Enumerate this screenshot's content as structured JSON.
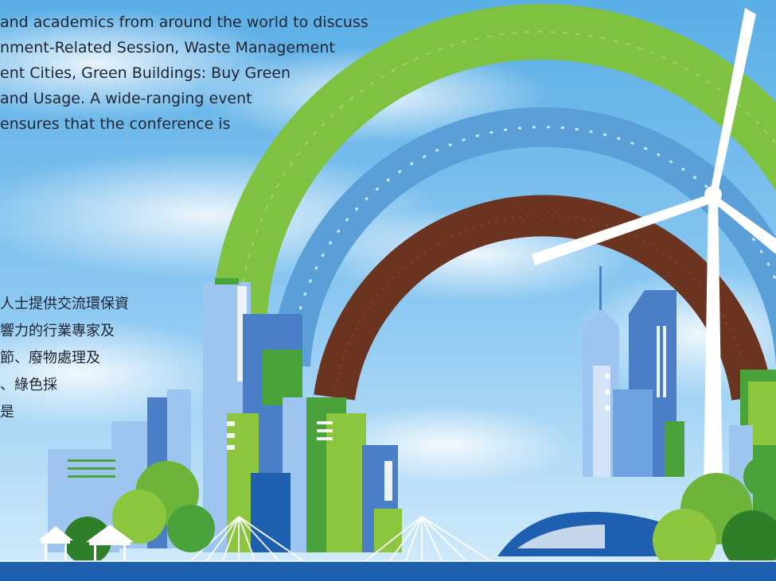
{
  "english_paragraph": {
    "lines": [
      "and academics from around the world to discuss",
      "nment-Related Session, Waste Management",
      "ent Cities, Green Buildings: Buy Green",
      "and Usage. A wide-ranging event",
      "ensures that the conference is"
    ]
  },
  "chinese_paragraph": {
    "lines": [
      "人士提供交流環保資",
      "響力的行業專家及",
      "節、廢物處理及",
      "、綠色採",
      "是"
    ]
  },
  "colors": {
    "sky_top": "#5aaee6",
    "sky_bottom": "#cfe9fb",
    "leaf_green": "#7fc241",
    "water_blue": "#5a9fd8",
    "soil_brown": "#6b3420",
    "building_blue": "#3f7fcf",
    "building_light": "#9ec4f0",
    "building_green": "#4aa33a",
    "road_blue": "#1f5fb0"
  },
  "icons": [
    "wind-turbine-icon",
    "tree-icon",
    "pavilion-icon",
    "bridge-icon"
  ]
}
